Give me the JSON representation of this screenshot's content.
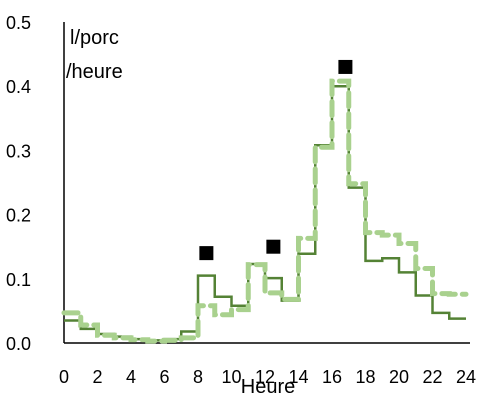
{
  "chart_data": {
    "type": "line",
    "title": "",
    "ylabel_lines": [
      "l/porc",
      "/heure"
    ],
    "xlabel": "Heure",
    "xlim": [
      0,
      24
    ],
    "ylim": [
      0,
      0.5
    ],
    "x_ticks": [
      0,
      2,
      4,
      6,
      8,
      10,
      12,
      14,
      16,
      18,
      20,
      22,
      24
    ],
    "y_ticks": [
      "0.0",
      "0.1",
      "0.2",
      "0.3",
      "0.4",
      "0.5"
    ],
    "grid": false,
    "legend": "none",
    "series": [
      {
        "style": "solid-step",
        "color": "#548235",
        "x": [
          0,
          1,
          2,
          3,
          4,
          5,
          6,
          7,
          8,
          9,
          10,
          11,
          12,
          13,
          14,
          15,
          16,
          17,
          18,
          19,
          20,
          21,
          22,
          23,
          24
        ],
        "y": [
          0.035,
          0.022,
          0.014,
          0.01,
          0.006,
          0.004,
          0.006,
          0.018,
          0.105,
          0.072,
          0.058,
          0.123,
          0.101,
          0.066,
          0.139,
          0.308,
          0.4,
          0.242,
          0.128,
          0.132,
          0.11,
          0.074,
          0.047,
          0.038,
          0.038
        ]
      },
      {
        "style": "dashed-step",
        "color": "#A9D18E",
        "x": [
          0,
          1,
          2,
          3,
          4,
          5,
          6,
          7,
          8,
          9,
          10,
          11,
          12,
          13,
          14,
          15,
          16,
          17,
          18,
          19,
          20,
          21,
          22,
          23,
          24
        ],
        "y": [
          0.047,
          0.028,
          0.012,
          0.008,
          0.005,
          0.003,
          0.004,
          0.008,
          0.058,
          0.044,
          0.052,
          0.122,
          0.078,
          0.068,
          0.163,
          0.305,
          0.408,
          0.248,
          0.172,
          0.168,
          0.155,
          0.116,
          0.077,
          0.076,
          0.076
        ]
      },
      {
        "style": "markers",
        "color": "#000000",
        "x": [
          8.5,
          12.5,
          16.8
        ],
        "y": [
          0.14,
          0.15,
          0.43
        ]
      }
    ]
  }
}
